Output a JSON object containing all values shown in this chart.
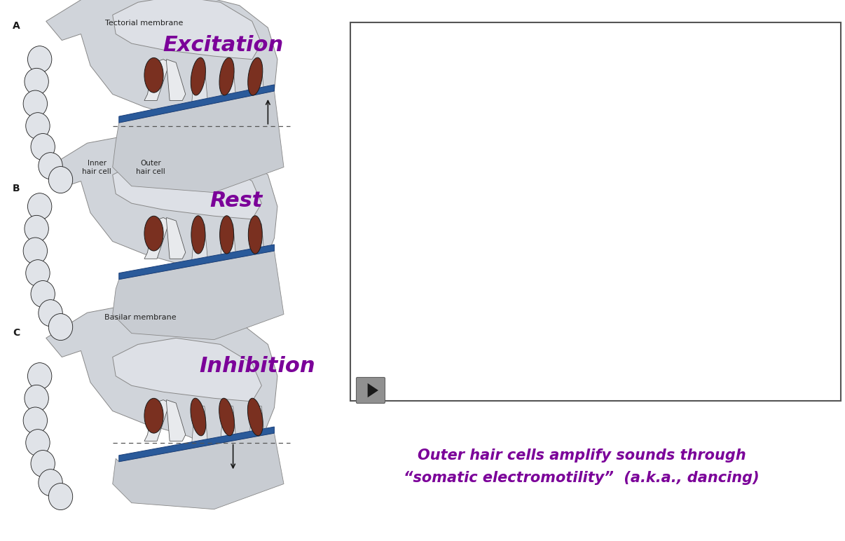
{
  "bg_color": "#ffffff",
  "label_A": "A",
  "label_B": "B",
  "label_C": "C",
  "title_excitation": "Excitation",
  "title_rest": "Rest",
  "title_inhibition": "Inhibition",
  "purple_color": "#7B0099",
  "bottom_text_line1": "Outer hair cells amplify sounds through",
  "bottom_text_line2": "“somatic electromotility”  (a.k.a., dancing)",
  "bottom_text_color": "#7B0099",
  "annotation_color": "#222222",
  "gray_light": "#c8cdd4",
  "gray_med": "#a0a5ac",
  "blue_bm": "#2a5a9a",
  "brown_hc": "#7a3020",
  "dark": "#1a1a1a",
  "small_font": 8.0,
  "label_fontsize": 10
}
